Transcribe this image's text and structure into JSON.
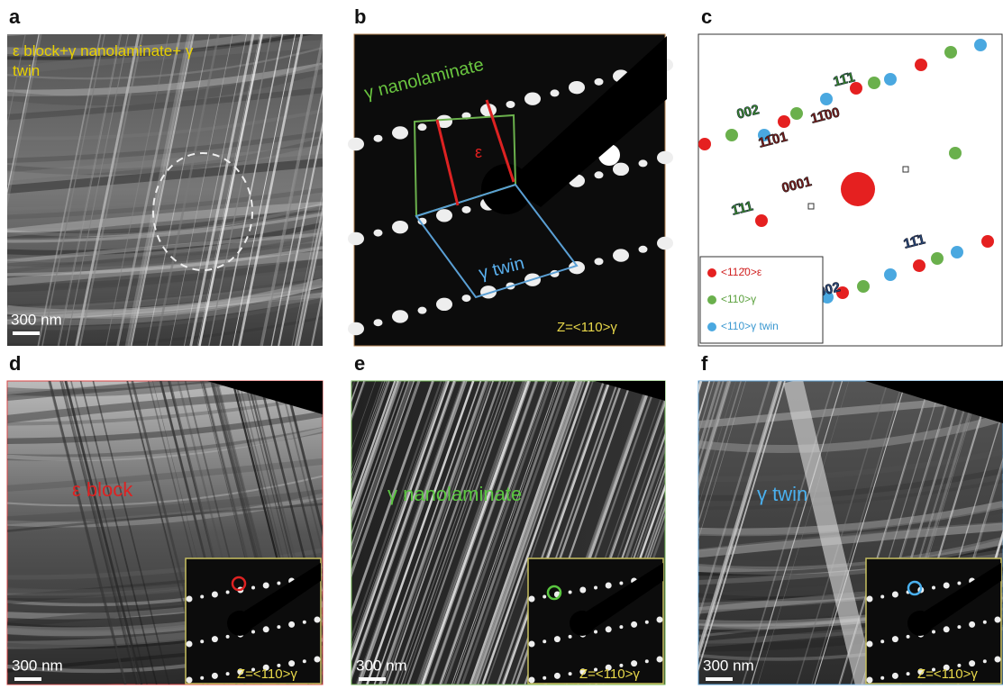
{
  "panels": [
    {
      "label": "a",
      "caption": "ε block+γ nanolaminate+ γ twin",
      "scale_bar": "300 nm"
    },
    {
      "label": "b",
      "annotations": [
        "γ nanolaminate",
        "ε",
        "γ twin"
      ],
      "zone_axis": "Z=<110>γ"
    },
    {
      "label": "c",
      "indices": [
        "11̄1",
        "002",
        "11̄01",
        "11̄00",
        "0001",
        "1̄11",
        "002",
        "11̄1"
      ],
      "legend": [
        "<112̄0>ε",
        "<110>γ",
        "<110>γ twin"
      ]
    },
    {
      "label": "d",
      "caption": "ε block",
      "scale_bar": "300 nm",
      "zone_axis": "Z=<110>γ"
    },
    {
      "label": "e",
      "caption": "γ nanolaminate",
      "scale_bar": "300 nm",
      "zone_axis": "Z=<110>γ"
    },
    {
      "label": "f",
      "caption": "γ twin",
      "scale_bar": "300 nm",
      "zone_axis": "Z=<110>γ"
    }
  ]
}
